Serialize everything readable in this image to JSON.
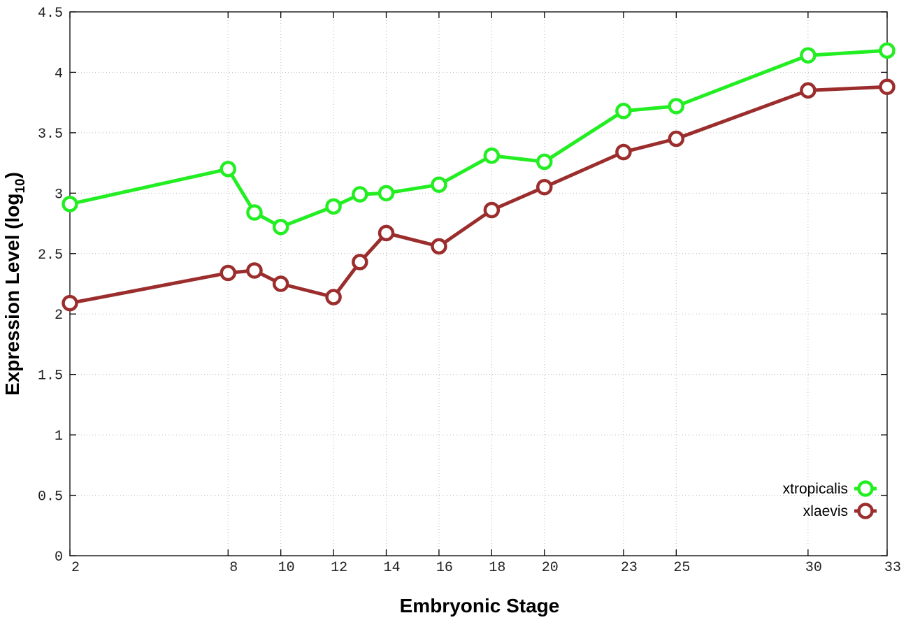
{
  "chart_data": {
    "type": "line",
    "xlabel": "Embryonic Stage",
    "ylabel_main": "Expression Level (log",
    "ylabel_sub": "10",
    "ylabel_close": ")",
    "xlim": [
      2,
      33
    ],
    "ylim": [
      0,
      4.5
    ],
    "x_ticks": [
      2,
      8,
      10,
      12,
      14,
      16,
      18,
      20,
      23,
      25,
      30,
      33
    ],
    "y_ticks": [
      0,
      0.5,
      1,
      1.5,
      2,
      2.5,
      3,
      3.5,
      4,
      4.5
    ],
    "y_tick_labels": [
      "0",
      "0.5",
      "1",
      "1.5",
      "2",
      "2.5",
      "3",
      "3.5",
      "4",
      "4.5"
    ],
    "grid": true,
    "legend_position": "bottom-right",
    "series": [
      {
        "name": "xtropicalis",
        "color": "#22ee22",
        "x": [
          2,
          8,
          9,
          10,
          12,
          13,
          14,
          16,
          18,
          20,
          23,
          25,
          30,
          33
        ],
        "y": [
          2.91,
          3.2,
          2.84,
          2.72,
          2.89,
          2.99,
          3.0,
          3.07,
          3.31,
          3.26,
          3.68,
          3.72,
          4.14,
          4.18
        ]
      },
      {
        "name": "xlaevis",
        "color": "#9b2d2d",
        "x": [
          2,
          8,
          9,
          10,
          12,
          13,
          14,
          16,
          18,
          20,
          23,
          25,
          30,
          33
        ],
        "y": [
          2.09,
          2.34,
          2.36,
          2.25,
          2.14,
          2.43,
          2.67,
          2.56,
          2.86,
          3.05,
          3.34,
          3.45,
          3.85,
          3.88
        ]
      }
    ]
  }
}
